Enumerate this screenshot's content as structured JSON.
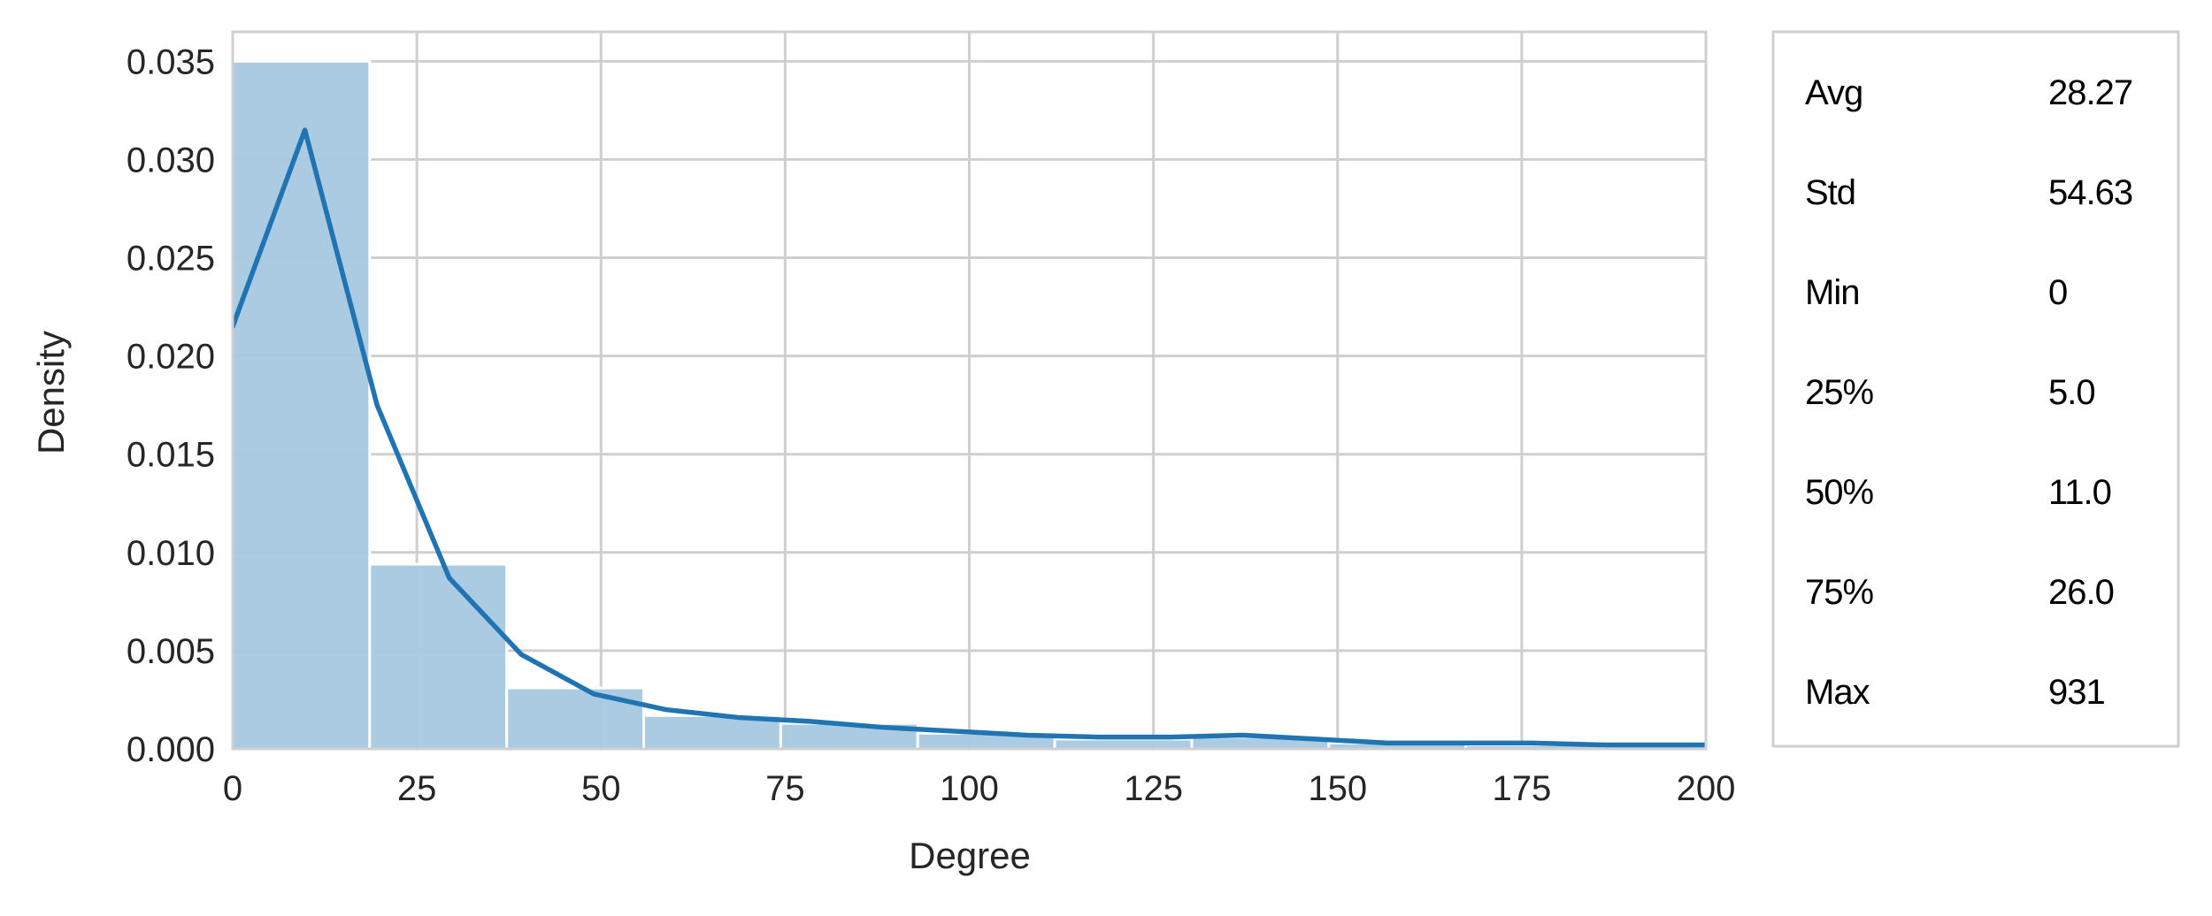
{
  "chart_data": {
    "type": "histogram",
    "xlabel": "Degree",
    "ylabel": "Density",
    "xlim": [
      0,
      200
    ],
    "ylim": [
      0,
      0.0365
    ],
    "x_ticks": [
      0,
      25,
      50,
      75,
      100,
      125,
      150,
      175,
      200
    ],
    "x_tick_labels": [
      "0",
      "25",
      "50",
      "75",
      "100",
      "125",
      "150",
      "175",
      "200"
    ],
    "y_ticks": [
      0,
      0.005,
      0.01,
      0.015,
      0.02,
      0.025,
      0.03,
      0.035
    ],
    "y_tick_labels": [
      "0.000",
      "0.005",
      "0.010",
      "0.015",
      "0.020",
      "0.025",
      "0.030",
      "0.035"
    ],
    "grid": true,
    "bin_width": 18.6,
    "bins": [
      {
        "x0": 0,
        "x1": 18.6,
        "density": 0.035
      },
      {
        "x0": 18.6,
        "x1": 37.2,
        "density": 0.0094
      },
      {
        "x0": 37.2,
        "x1": 55.8,
        "density": 0.0031
      },
      {
        "x0": 55.8,
        "x1": 74.4,
        "density": 0.0017
      },
      {
        "x0": 74.4,
        "x1": 93.0,
        "density": 0.0013
      },
      {
        "x0": 93.0,
        "x1": 111.6,
        "density": 0.0008
      },
      {
        "x0": 111.6,
        "x1": 130.2,
        "density": 0.0005
      },
      {
        "x0": 130.2,
        "x1": 148.8,
        "density": 0.0006
      },
      {
        "x0": 148.8,
        "x1": 167.4,
        "density": 0.0003
      },
      {
        "x0": 167.4,
        "x1": 186.0,
        "density": 0.0002
      },
      {
        "x0": 186.0,
        "x1": 204.6,
        "density": 0.0002
      }
    ],
    "kde": {
      "x": [
        0,
        9.8,
        19.6,
        29.4,
        39.2,
        49.0,
        58.8,
        68.6,
        78.4,
        88.2,
        98.0,
        107.8,
        117.6,
        127.4,
        137.2,
        147.0,
        156.8,
        166.6,
        176.4,
        186.2,
        200
      ],
      "y": [
        0.0215,
        0.0315,
        0.0175,
        0.0087,
        0.0048,
        0.0028,
        0.002,
        0.0016,
        0.0014,
        0.0011,
        0.0009,
        0.0007,
        0.0006,
        0.0006,
        0.0007,
        0.0005,
        0.0003,
        0.0003,
        0.0003,
        0.0002,
        0.0002
      ]
    },
    "colors": {
      "bar_fill": "#a6c8e1",
      "bar_edge": "#ffffff",
      "kde_line": "#2074b2",
      "grid": "#cfcfcf",
      "axis_frame": "#cfcfcf",
      "text": "#262626"
    }
  },
  "stats_table": {
    "rows": [
      {
        "label": "Avg",
        "value": "28.27"
      },
      {
        "label": "Std",
        "value": "54.63"
      },
      {
        "label": "Min",
        "value": "0"
      },
      {
        "label": "25%",
        "value": "5.0"
      },
      {
        "label": "50%",
        "value": "11.0"
      },
      {
        "label": "75%",
        "value": "26.0"
      },
      {
        "label": "Max",
        "value": "931"
      }
    ]
  }
}
